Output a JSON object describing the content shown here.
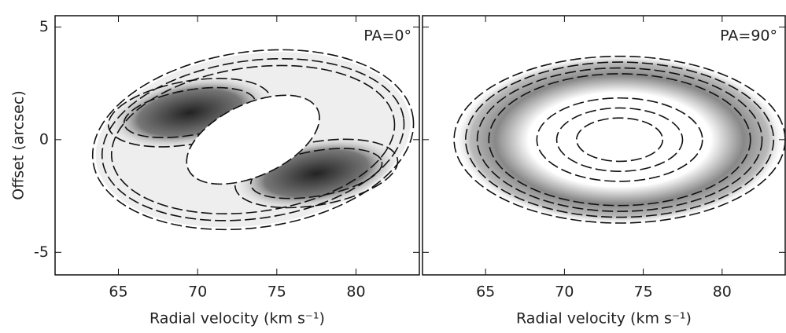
{
  "chart_data": [
    {
      "type": "contour",
      "annotation": "PA=0°",
      "xlabel": "Radial velocity (km s⁻¹)",
      "ylabel": "Offset (arcsec)",
      "xlim": [
        61,
        84
      ],
      "ylim": [
        -6,
        5.5
      ],
      "xticks": [
        65,
        70,
        75,
        80
      ],
      "yticks": [
        -5,
        0,
        5
      ]
    },
    {
      "type": "contour",
      "annotation": "PA=90°",
      "xlabel": "Radial velocity (km s⁻¹)",
      "xlim": [
        61,
        84
      ],
      "ylim": [
        -6,
        5.5
      ],
      "xticks": [
        65,
        70,
        75,
        80
      ],
      "yticks": [
        -5,
        0,
        5
      ]
    }
  ]
}
